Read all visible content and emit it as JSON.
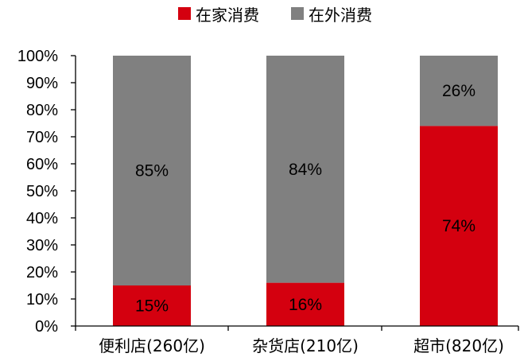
{
  "chart_data": {
    "type": "bar",
    "stacked": true,
    "percent": true,
    "categories": [
      "便利店(260亿)",
      "杂货店(210亿)",
      "超市(820亿)"
    ],
    "series": [
      {
        "name": "在家消费",
        "values": [
          15,
          16,
          74
        ],
        "labels": [
          "15%",
          "16%",
          "74%"
        ],
        "color": "#d4000f"
      },
      {
        "name": "在外消费",
        "values": [
          85,
          84,
          26
        ],
        "labels": [
          "85%",
          "84%",
          "26%"
        ],
        "color": "#808080"
      }
    ],
    "y_ticks": [
      "0%",
      "10%",
      "20%",
      "30%",
      "40%",
      "50%",
      "60%",
      "70%",
      "80%",
      "90%",
      "100%"
    ],
    "ylim": [
      0,
      100
    ],
    "grid": false,
    "legend_position": "top-center"
  }
}
